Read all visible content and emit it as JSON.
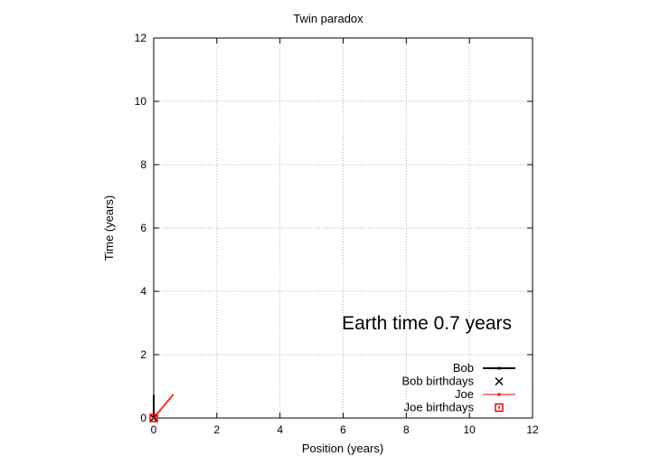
{
  "chart_data": {
    "type": "line",
    "title": "Twin paradox",
    "xlabel": "Position (years)",
    "ylabel": "Time (years)",
    "xlim": [
      0,
      12
    ],
    "ylim": [
      0,
      12
    ],
    "x_ticks": [
      "0",
      "2",
      "4",
      "6",
      "8",
      "10",
      "12"
    ],
    "y_ticks": [
      "0",
      "2",
      "4",
      "6",
      "8",
      "10",
      "12"
    ],
    "grid": true,
    "legend_position": "bottom-right",
    "annotation": "Earth time  0.7 years",
    "series": [
      {
        "name": "Bob",
        "style": "line-points",
        "color": "#000000",
        "x": [
          0,
          0,
          0,
          0,
          0,
          0,
          0,
          0,
          0,
          0,
          0,
          0,
          0,
          0,
          0
        ],
        "y": [
          0,
          0.05,
          0.1,
          0.15,
          0.2,
          0.25,
          0.3,
          0.35,
          0.4,
          0.45,
          0.5,
          0.55,
          0.6,
          0.65,
          0.7
        ]
      },
      {
        "name": "Bob birthdays",
        "style": "x-markers",
        "color": "#000000",
        "x": [
          0
        ],
        "y": [
          0
        ]
      },
      {
        "name": "Joe",
        "style": "line-points",
        "color": "#ff0000",
        "x": [
          0,
          0.05,
          0.1,
          0.15,
          0.2,
          0.25,
          0.3,
          0.35,
          0.4,
          0.45,
          0.5,
          0.55,
          0.6
        ],
        "y": [
          0,
          0.06,
          0.12,
          0.18,
          0.24,
          0.3,
          0.36,
          0.42,
          0.48,
          0.54,
          0.6,
          0.66,
          0.72
        ]
      },
      {
        "name": "Joe birthdays",
        "style": "square-markers",
        "color": "#ff0000",
        "x": [
          0
        ],
        "y": [
          0
        ]
      }
    ]
  }
}
